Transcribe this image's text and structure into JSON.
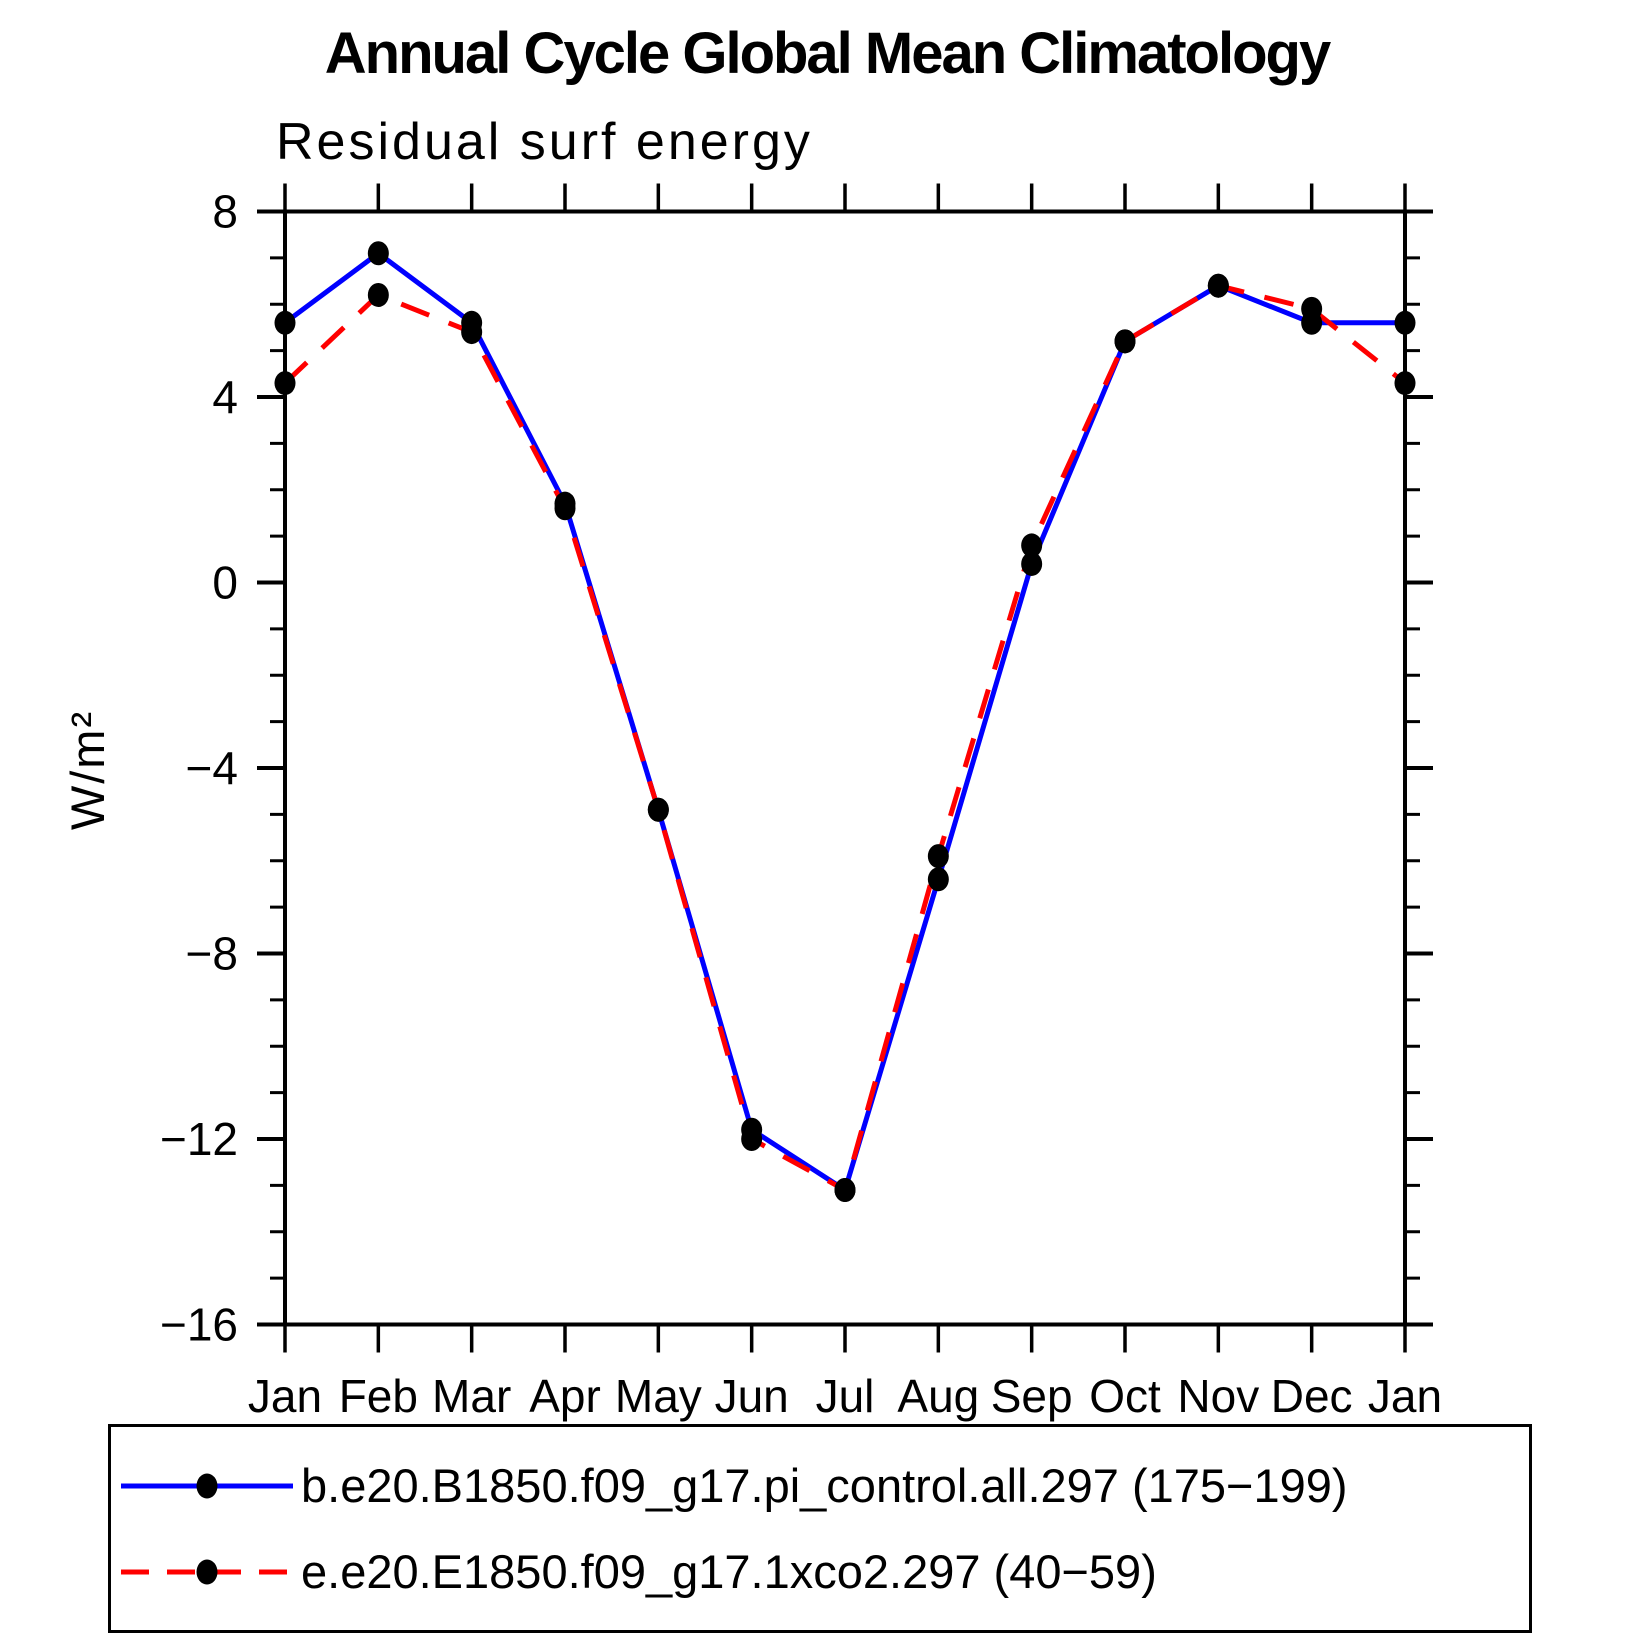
{
  "chart_data": {
    "type": "line",
    "title": "Annual Cycle Global Mean Climatology",
    "subtitle": "Residual surf energy",
    "ylabel": "W/m²",
    "xlabel": "",
    "categories": [
      "Jan",
      "Feb",
      "Mar",
      "Apr",
      "May",
      "Jun",
      "Jul",
      "Aug",
      "Sep",
      "Oct",
      "Nov",
      "Dec",
      "Jan"
    ],
    "ylim": [
      -16,
      8
    ],
    "y_major_ticks": [
      8,
      4,
      0,
      -4,
      -8,
      -12,
      -16
    ],
    "y_major_tick_step": 4,
    "y_minor_tick_step": 1,
    "grid": false,
    "legend_position": "bottom",
    "axis_color": "#000000",
    "marker_color": "#000000",
    "series": [
      {
        "name": "b.e20.B1850.f09_g17.pi_control.all.297 (175−199)",
        "color": "#0000ff",
        "style": "solid",
        "marker": "filled-circle",
        "values": [
          5.6,
          7.1,
          5.6,
          1.7,
          -4.9,
          -11.8,
          -13.1,
          -6.4,
          0.4,
          5.2,
          6.4,
          5.6,
          5.6
        ]
      },
      {
        "name": "e.e20.E1850.f09_g17.1xco2.297 (40−59)",
        "color": "#ff0000",
        "style": "dashed",
        "marker": "filled-circle",
        "values": [
          4.3,
          6.2,
          5.4,
          1.6,
          -4.9,
          -12.0,
          -13.1,
          -5.9,
          0.8,
          5.2,
          6.4,
          5.9,
          4.3
        ]
      }
    ]
  }
}
